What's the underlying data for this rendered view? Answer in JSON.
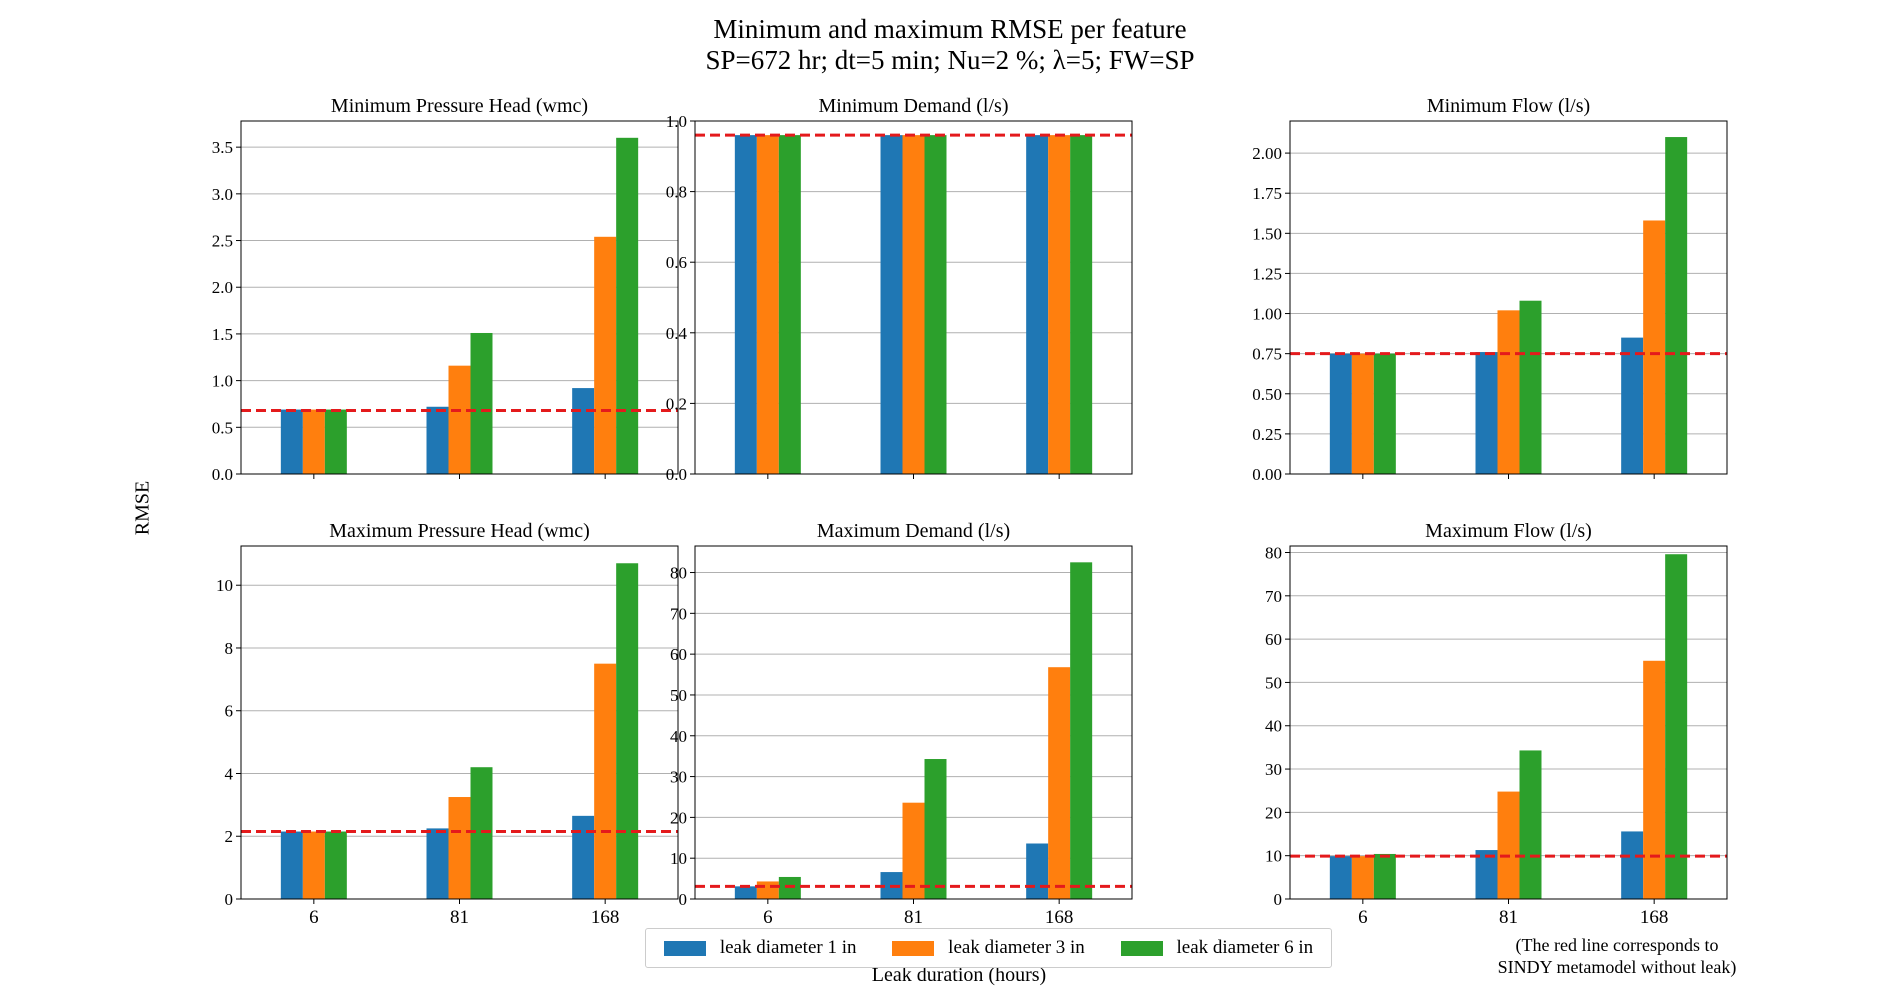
{
  "header": {
    "title_line1": "Minimum and maximum RMSE per feature",
    "title_line2": "SP=672 hr; dt=5 min; Nu=2 %; λ=5; FW=SP"
  },
  "ylabel": "RMSE",
  "xlabel": "Leak duration (hours)",
  "note": {
    "line1": "(The red line corresponds to",
    "line2": "SINDY metamodel without leak)"
  },
  "legend": [
    {
      "label": "leak diameter 1 in",
      "color": "#1f77b4"
    },
    {
      "label": "leak diameter 3 in",
      "color": "#ff7f0e"
    },
    {
      "label": "leak diameter 6 in",
      "color": "#2ca02c"
    }
  ],
  "colors": {
    "reference_line": "#e41a1c",
    "grid": "#b0b0b0"
  },
  "chart_data": [
    {
      "type": "bar",
      "title": "Minimum Pressure Head (wmc)",
      "categories": [
        "6",
        "81",
        "168"
      ],
      "show_categories": false,
      "series": [
        {
          "name": "leak diameter 1 in",
          "values": [
            0.69,
            0.72,
            0.92
          ]
        },
        {
          "name": "leak diameter 3 in",
          "values": [
            0.69,
            1.16,
            2.54
          ]
        },
        {
          "name": "leak diameter 6 in",
          "values": [
            0.69,
            1.51,
            3.6
          ]
        }
      ],
      "reference_line": 0.68,
      "ylim": [
        0,
        3.78
      ],
      "yticks": [
        "0.0",
        "0.5",
        "1.0",
        "1.5",
        "2.0",
        "2.5",
        "3.0",
        "3.5"
      ],
      "grid": true
    },
    {
      "type": "bar",
      "title": "Minimum Demand (l/s)",
      "categories": [
        "6",
        "81",
        "168"
      ],
      "show_categories": false,
      "series": [
        {
          "name": "leak diameter 1 in",
          "values": [
            0.96,
            0.96,
            0.96
          ]
        },
        {
          "name": "leak diameter 3 in",
          "values": [
            0.96,
            0.96,
            0.96
          ]
        },
        {
          "name": "leak diameter 6 in",
          "values": [
            0.96,
            0.96,
            0.96
          ]
        }
      ],
      "reference_line": 0.96,
      "ylim": [
        0,
        1.0
      ],
      "yticks": [
        "0.0",
        "0.2",
        "0.4",
        "0.6",
        "0.8",
        "1.0"
      ],
      "grid": true
    },
    {
      "type": "bar",
      "title": "Minimum Flow (l/s)",
      "categories": [
        "6",
        "81",
        "168"
      ],
      "show_categories": false,
      "series": [
        {
          "name": "leak diameter 1 in",
          "values": [
            0.75,
            0.76,
            0.85
          ]
        },
        {
          "name": "leak diameter 3 in",
          "values": [
            0.75,
            1.02,
            1.58
          ]
        },
        {
          "name": "leak diameter 6 in",
          "values": [
            0.75,
            1.08,
            2.1
          ]
        }
      ],
      "reference_line": 0.75,
      "ylim": [
        0,
        2.2
      ],
      "yticks": [
        "0.00",
        "0.25",
        "0.50",
        "0.75",
        "1.00",
        "1.25",
        "1.50",
        "1.75",
        "2.00"
      ],
      "grid": true
    },
    {
      "type": "bar",
      "title": "Maximum Pressure Head (wmc)",
      "categories": [
        "6",
        "81",
        "168"
      ],
      "show_categories": true,
      "series": [
        {
          "name": "leak diameter 1 in",
          "values": [
            2.15,
            2.25,
            2.65
          ]
        },
        {
          "name": "leak diameter 3 in",
          "values": [
            2.15,
            3.25,
            7.5
          ]
        },
        {
          "name": "leak diameter 6 in",
          "values": [
            2.15,
            4.2,
            10.7
          ]
        }
      ],
      "reference_line": 2.15,
      "ylim": [
        0,
        11.25
      ],
      "yticks": [
        "0",
        "2",
        "4",
        "6",
        "8",
        "10"
      ],
      "grid": true
    },
    {
      "type": "bar",
      "title": "Maximum Demand (l/s)",
      "categories": [
        "6",
        "81",
        "168"
      ],
      "show_categories": true,
      "series": [
        {
          "name": "leak diameter 1 in",
          "values": [
            3.1,
            6.6,
            13.6
          ]
        },
        {
          "name": "leak diameter 3 in",
          "values": [
            4.3,
            23.6,
            56.8
          ]
        },
        {
          "name": "leak diameter 6 in",
          "values": [
            5.4,
            34.3,
            82.5
          ]
        }
      ],
      "reference_line": 3.1,
      "ylim": [
        0,
        86.5
      ],
      "yticks": [
        "0",
        "10",
        "20",
        "30",
        "40",
        "50",
        "60",
        "70",
        "80"
      ],
      "grid": true
    },
    {
      "type": "bar",
      "title": "Maximum Flow (l/s)",
      "categories": [
        "6",
        "81",
        "168"
      ],
      "show_categories": true,
      "series": [
        {
          "name": "leak diameter 1 in",
          "values": [
            9.9,
            11.3,
            15.6
          ]
        },
        {
          "name": "leak diameter 3 in",
          "values": [
            9.9,
            24.8,
            55.0
          ]
        },
        {
          "name": "leak diameter 6 in",
          "values": [
            10.4,
            34.3,
            79.6
          ]
        }
      ],
      "reference_line": 9.9,
      "ylim": [
        0,
        81.5
      ],
      "yticks": [
        "0",
        "10",
        "20",
        "30",
        "40",
        "50",
        "60",
        "70",
        "80"
      ],
      "grid": true
    }
  ]
}
